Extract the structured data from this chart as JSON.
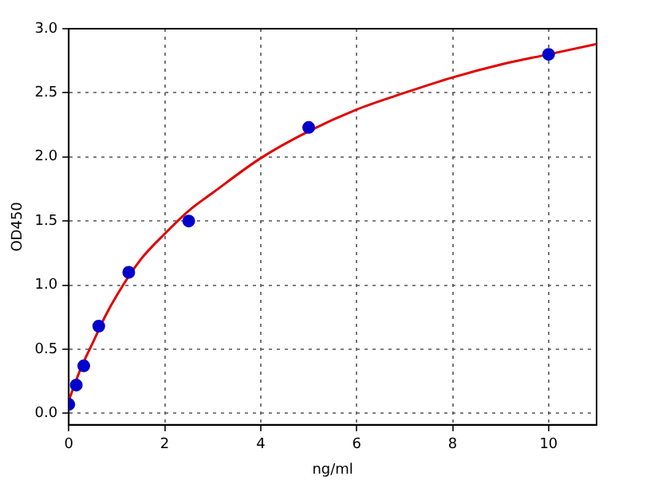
{
  "chart_data": {
    "type": "scatter",
    "xlabel": "ng/ml",
    "ylabel": "OD450",
    "xlim": [
      0,
      11
    ],
    "xticks": [
      0,
      2,
      4,
      6,
      8,
      10
    ],
    "ylim": [
      -0.09,
      3.0
    ],
    "yticks": [
      {
        "value": 0,
        "label": "0.0"
      },
      0.5,
      {
        "value": 1,
        "label": "1.0"
      },
      1.5,
      {
        "value": 2,
        "label": "2.0"
      },
      2.5,
      {
        "value": 3,
        "label": "3.0"
      }
    ],
    "grid": true,
    "marker": "circle",
    "series": [
      {
        "type": "line",
        "color": "#e00000",
        "marker": "none",
        "x": [
          0,
          0.25,
          0.5,
          0.75,
          1,
          1.5,
          2,
          2.5,
          3,
          4,
          5,
          6,
          7,
          8,
          9,
          10,
          11
        ],
        "values": [
          0.1,
          0.35,
          0.55,
          0.75,
          0.92,
          1.2,
          1.4,
          1.58,
          1.72,
          1.99,
          2.2,
          2.37,
          2.5,
          2.62,
          2.72,
          2.8,
          2.88
        ]
      },
      {
        "type": "scatter",
        "color": "#0000cc",
        "x": [
          0,
          0.156,
          0.3125,
          0.625,
          1.25,
          2.5,
          5,
          10
        ],
        "values": [
          0.07,
          0.22,
          0.37,
          0.68,
          1.1,
          1.5,
          2.23,
          2.8
        ]
      }
    ]
  }
}
